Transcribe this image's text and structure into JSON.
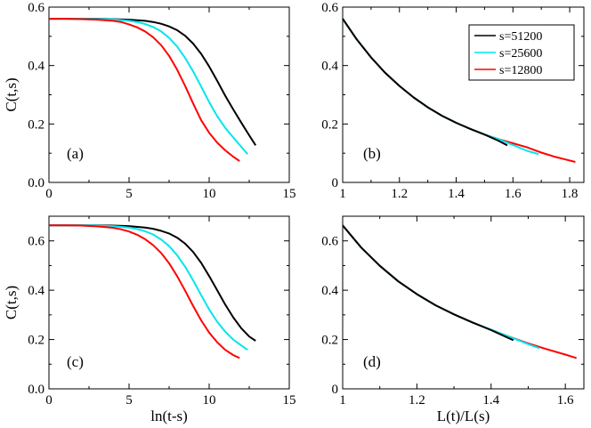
{
  "chart_data": [
    {
      "id": "a",
      "type": "line",
      "panel_label": "(a)",
      "xlabel": "",
      "ylabel": "C(t,s)",
      "xlim": [
        0,
        15
      ],
      "ylim": [
        0,
        0.6
      ],
      "xticks": [
        "0",
        "5",
        "10",
        "15"
      ],
      "yticks": [
        "0.0",
        "0.2",
        "0.4",
        "0.6"
      ],
      "series": [
        {
          "name": "s=51200",
          "color": "#000000",
          "x": [
            0,
            1,
            2,
            3,
            4,
            5,
            6,
            6.5,
            7,
            7.5,
            8,
            8.5,
            9,
            9.5,
            10,
            10.5,
            11,
            11.5,
            12,
            12.5,
            12.9
          ],
          "values": [
            0.56,
            0.56,
            0.56,
            0.56,
            0.559,
            0.557,
            0.553,
            0.549,
            0.543,
            0.534,
            0.521,
            0.502,
            0.475,
            0.44,
            0.397,
            0.348,
            0.297,
            0.25,
            0.205,
            0.161,
            0.127
          ]
        },
        {
          "name": "s=25600",
          "color": "#00e5ee",
          "x": [
            0,
            1,
            2,
            3,
            4,
            5,
            5.5,
            6,
            6.5,
            7,
            7.5,
            8,
            8.5,
            9,
            9.5,
            10,
            10.5,
            11,
            11.5,
            12,
            12.4
          ],
          "values": [
            0.56,
            0.56,
            0.56,
            0.559,
            0.558,
            0.553,
            0.549,
            0.542,
            0.532,
            0.517,
            0.495,
            0.465,
            0.426,
            0.38,
            0.328,
            0.275,
            0.227,
            0.187,
            0.154,
            0.122,
            0.097
          ]
        },
        {
          "name": "s=12800",
          "color": "#ff0000",
          "x": [
            0,
            1,
            2,
            3,
            4,
            4.5,
            5,
            5.5,
            6,
            6.5,
            7,
            7.5,
            8,
            8.5,
            9,
            9.5,
            10,
            10.5,
            11,
            11.5,
            11.9
          ],
          "values": [
            0.56,
            0.56,
            0.559,
            0.557,
            0.553,
            0.549,
            0.541,
            0.531,
            0.517,
            0.497,
            0.47,
            0.433,
            0.386,
            0.33,
            0.27,
            0.213,
            0.17,
            0.136,
            0.11,
            0.088,
            0.073
          ]
        }
      ]
    },
    {
      "id": "b",
      "type": "line",
      "panel_label": "(b)",
      "xlabel": "",
      "ylabel": "",
      "xlim": [
        1,
        1.85
      ],
      "ylim": [
        0,
        0.6
      ],
      "xticks": [
        "1",
        "1.2",
        "1.4",
        "1.6",
        "1.8"
      ],
      "yticks": [
        "0",
        "0.2",
        "0.4",
        "0.6"
      ],
      "legend": {
        "position": "top-right",
        "entries": [
          "s=51200",
          "s=25600",
          "s=12800"
        ]
      },
      "series": [
        {
          "name": "s=12800",
          "color": "#ff0000",
          "x": [
            1.0,
            1.05,
            1.1,
            1.15,
            1.2,
            1.25,
            1.3,
            1.35,
            1.4,
            1.45,
            1.5,
            1.55,
            1.6,
            1.65,
            1.7,
            1.75,
            1.82
          ],
          "values": [
            0.56,
            0.489,
            0.428,
            0.375,
            0.33,
            0.291,
            0.257,
            0.228,
            0.204,
            0.183,
            0.164,
            0.148,
            0.134,
            0.12,
            0.102,
            0.087,
            0.07
          ]
        },
        {
          "name": "s=25600",
          "color": "#00e5ee",
          "x": [
            1.0,
            1.05,
            1.1,
            1.15,
            1.2,
            1.25,
            1.3,
            1.35,
            1.4,
            1.45,
            1.5,
            1.55,
            1.6,
            1.65,
            1.69
          ],
          "values": [
            0.56,
            0.489,
            0.428,
            0.375,
            0.33,
            0.291,
            0.257,
            0.228,
            0.204,
            0.183,
            0.164,
            0.148,
            0.128,
            0.108,
            0.097
          ]
        },
        {
          "name": "s=51200",
          "color": "#000000",
          "x": [
            1.0,
            1.05,
            1.1,
            1.15,
            1.2,
            1.25,
            1.3,
            1.35,
            1.4,
            1.45,
            1.5,
            1.55,
            1.58
          ],
          "values": [
            0.56,
            0.489,
            0.428,
            0.375,
            0.33,
            0.291,
            0.257,
            0.228,
            0.204,
            0.183,
            0.164,
            0.142,
            0.127
          ]
        }
      ]
    },
    {
      "id": "c",
      "type": "line",
      "panel_label": "(c)",
      "xlabel": "ln(t-s)",
      "ylabel": "C(t,s)",
      "xlim": [
        0,
        15
      ],
      "ylim": [
        0,
        0.7
      ],
      "xticks": [
        "0",
        "5",
        "10",
        "15"
      ],
      "yticks": [
        "0.0",
        "0.2",
        "0.4",
        "0.6"
      ],
      "series": [
        {
          "name": "s=51200",
          "color": "#000000",
          "x": [
            0,
            1,
            2,
            3,
            4,
            5,
            6,
            6.5,
            7,
            7.5,
            8,
            8.5,
            9,
            9.5,
            10,
            10.5,
            11,
            11.5,
            12,
            12.5,
            12.9
          ],
          "values": [
            0.663,
            0.663,
            0.663,
            0.663,
            0.662,
            0.66,
            0.654,
            0.649,
            0.641,
            0.63,
            0.613,
            0.589,
            0.555,
            0.511,
            0.457,
            0.4,
            0.342,
            0.29,
            0.246,
            0.212,
            0.195
          ]
        },
        {
          "name": "s=25600",
          "color": "#00e5ee",
          "x": [
            0,
            1,
            2,
            3,
            4,
            5,
            5.5,
            6,
            6.5,
            7,
            7.5,
            8,
            8.5,
            9,
            9.5,
            10,
            10.5,
            11,
            11.5,
            12,
            12.4
          ],
          "values": [
            0.663,
            0.663,
            0.663,
            0.662,
            0.66,
            0.654,
            0.648,
            0.639,
            0.626,
            0.606,
            0.579,
            0.542,
            0.495,
            0.44,
            0.38,
            0.322,
            0.272,
            0.232,
            0.2,
            0.176,
            0.158
          ]
        },
        {
          "name": "s=12800",
          "color": "#ff0000",
          "x": [
            0,
            1,
            2,
            3,
            4,
            4.5,
            5,
            5.5,
            6,
            6.5,
            7,
            7.5,
            8,
            8.5,
            9,
            9.5,
            10,
            10.5,
            11,
            11.5,
            11.9
          ],
          "values": [
            0.663,
            0.663,
            0.662,
            0.659,
            0.653,
            0.647,
            0.638,
            0.625,
            0.607,
            0.583,
            0.551,
            0.509,
            0.457,
            0.398,
            0.336,
            0.278,
            0.228,
            0.189,
            0.158,
            0.137,
            0.125
          ]
        }
      ]
    },
    {
      "id": "d",
      "type": "line",
      "panel_label": "(d)",
      "xlabel": "L(t)/L(s)",
      "ylabel": "",
      "xlim": [
        1,
        1.65
      ],
      "ylim": [
        0,
        0.7
      ],
      "xticks": [
        "1",
        "1.2",
        "1.4",
        "1.6"
      ],
      "yticks": [
        "0",
        "0.2",
        "0.4",
        "0.6"
      ],
      "series": [
        {
          "name": "s=12800",
          "color": "#ff0000",
          "x": [
            1.0,
            1.05,
            1.1,
            1.15,
            1.2,
            1.25,
            1.3,
            1.35,
            1.4,
            1.45,
            1.5,
            1.55,
            1.6,
            1.63
          ],
          "values": [
            0.663,
            0.573,
            0.499,
            0.436,
            0.384,
            0.339,
            0.302,
            0.269,
            0.24,
            0.211,
            0.184,
            0.161,
            0.139,
            0.125
          ]
        },
        {
          "name": "s=25600",
          "color": "#00e5ee",
          "x": [
            1.0,
            1.05,
            1.1,
            1.15,
            1.2,
            1.25,
            1.3,
            1.35,
            1.4,
            1.45,
            1.5,
            1.53
          ],
          "values": [
            0.663,
            0.573,
            0.499,
            0.436,
            0.384,
            0.339,
            0.302,
            0.269,
            0.24,
            0.211,
            0.181,
            0.165
          ]
        },
        {
          "name": "s=51200",
          "color": "#000000",
          "x": [
            1.0,
            1.05,
            1.1,
            1.15,
            1.2,
            1.25,
            1.3,
            1.35,
            1.4,
            1.46
          ],
          "values": [
            0.663,
            0.573,
            0.499,
            0.436,
            0.384,
            0.339,
            0.302,
            0.269,
            0.238,
            0.197
          ]
        }
      ]
    }
  ]
}
